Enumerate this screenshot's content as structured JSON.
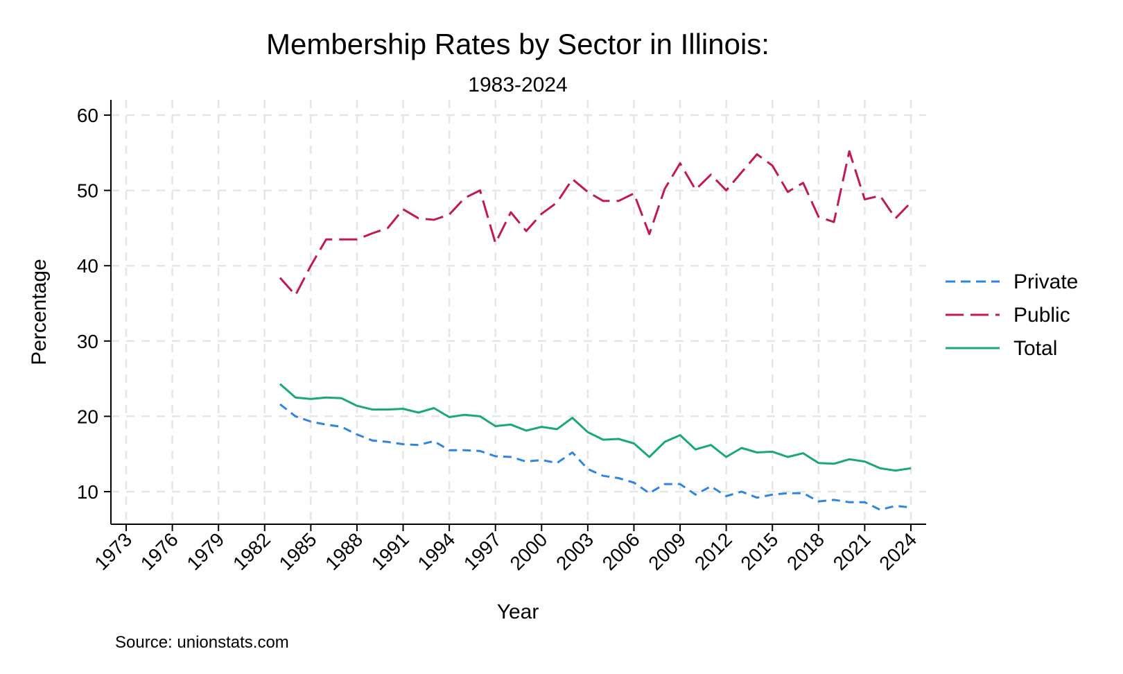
{
  "chart_data": {
    "type": "line",
    "title": "Membership Rates by Sector in Illinois:",
    "subtitle": "1983-2024",
    "xlabel": "Year",
    "ylabel": "Percentage",
    "source": "Source: unionstats.com",
    "xlim": [
      1973,
      2024
    ],
    "ylim": [
      6,
      62
    ],
    "xticks": [
      1973,
      1976,
      1979,
      1982,
      1985,
      1988,
      1991,
      1994,
      1997,
      2000,
      2003,
      2006,
      2009,
      2012,
      2015,
      2018,
      2021,
      2024
    ],
    "xtick_labels": [
      "1973",
      "1976",
      "1979",
      "1982",
      "1985",
      "1988",
      "1991",
      "1994",
      "1997",
      "2000",
      "2003",
      "2006",
      "2009",
      "2012",
      "2015",
      "2018",
      "2021",
      "2024"
    ],
    "yticks": [
      10,
      20,
      30,
      40,
      50,
      60
    ],
    "ytick_labels": [
      "10",
      "20",
      "30",
      "40",
      "50",
      "60"
    ],
    "grid": true,
    "legend_position": "right",
    "x": [
      1983,
      1984,
      1985,
      1986,
      1987,
      1988,
      1989,
      1990,
      1991,
      1992,
      1993,
      1994,
      1995,
      1996,
      1997,
      1998,
      1999,
      2000,
      2001,
      2002,
      2003,
      2004,
      2005,
      2006,
      2007,
      2008,
      2009,
      2010,
      2011,
      2012,
      2013,
      2014,
      2015,
      2016,
      2017,
      2018,
      2019,
      2020,
      2021,
      2022,
      2023,
      2024
    ],
    "series": [
      {
        "name": "Private",
        "color": "#2e86e0",
        "dash": "short",
        "values": [
          21.6,
          20.0,
          19.3,
          18.9,
          18.6,
          17.6,
          16.8,
          16.6,
          16.3,
          16.2,
          16.7,
          15.5,
          15.5,
          15.4,
          14.7,
          14.6,
          14.0,
          14.2,
          13.8,
          15.2,
          13.0,
          12.1,
          11.8,
          11.2,
          9.8,
          11.0,
          11.0,
          9.6,
          10.7,
          9.4,
          10.0,
          9.2,
          9.6,
          9.8,
          9.8,
          8.7,
          8.9,
          8.6,
          8.6,
          7.6,
          8.1,
          7.9
        ]
      },
      {
        "name": "Public",
        "color": "#c2185b",
        "dash": "long",
        "values": [
          38.4,
          36.1,
          40.0,
          43.5,
          43.5,
          43.5,
          44.3,
          45.0,
          47.5,
          46.3,
          46.1,
          46.8,
          49.0,
          50.0,
          43.0,
          47.1,
          44.6,
          46.9,
          48.4,
          51.5,
          49.8,
          48.6,
          48.6,
          49.6,
          44.2,
          50.2,
          53.6,
          50.1,
          52.1,
          50.0,
          52.4,
          54.8,
          53.3,
          49.8,
          51.0,
          46.5,
          45.8,
          55.2,
          48.8,
          49.3,
          46.3,
          48.4
        ]
      },
      {
        "name": "Total",
        "color": "#1aa87a",
        "dash": "solid",
        "values": [
          24.3,
          22.5,
          22.3,
          22.5,
          22.4,
          21.4,
          20.9,
          20.9,
          21.0,
          20.5,
          21.1,
          19.9,
          20.2,
          20.0,
          18.7,
          18.9,
          18.1,
          18.6,
          18.3,
          19.8,
          17.9,
          16.9,
          17.0,
          16.4,
          14.6,
          16.6,
          17.5,
          15.6,
          16.2,
          14.6,
          15.8,
          15.2,
          15.3,
          14.6,
          15.1,
          13.8,
          13.7,
          14.3,
          14.0,
          13.1,
          12.8,
          13.1
        ]
      }
    ]
  }
}
